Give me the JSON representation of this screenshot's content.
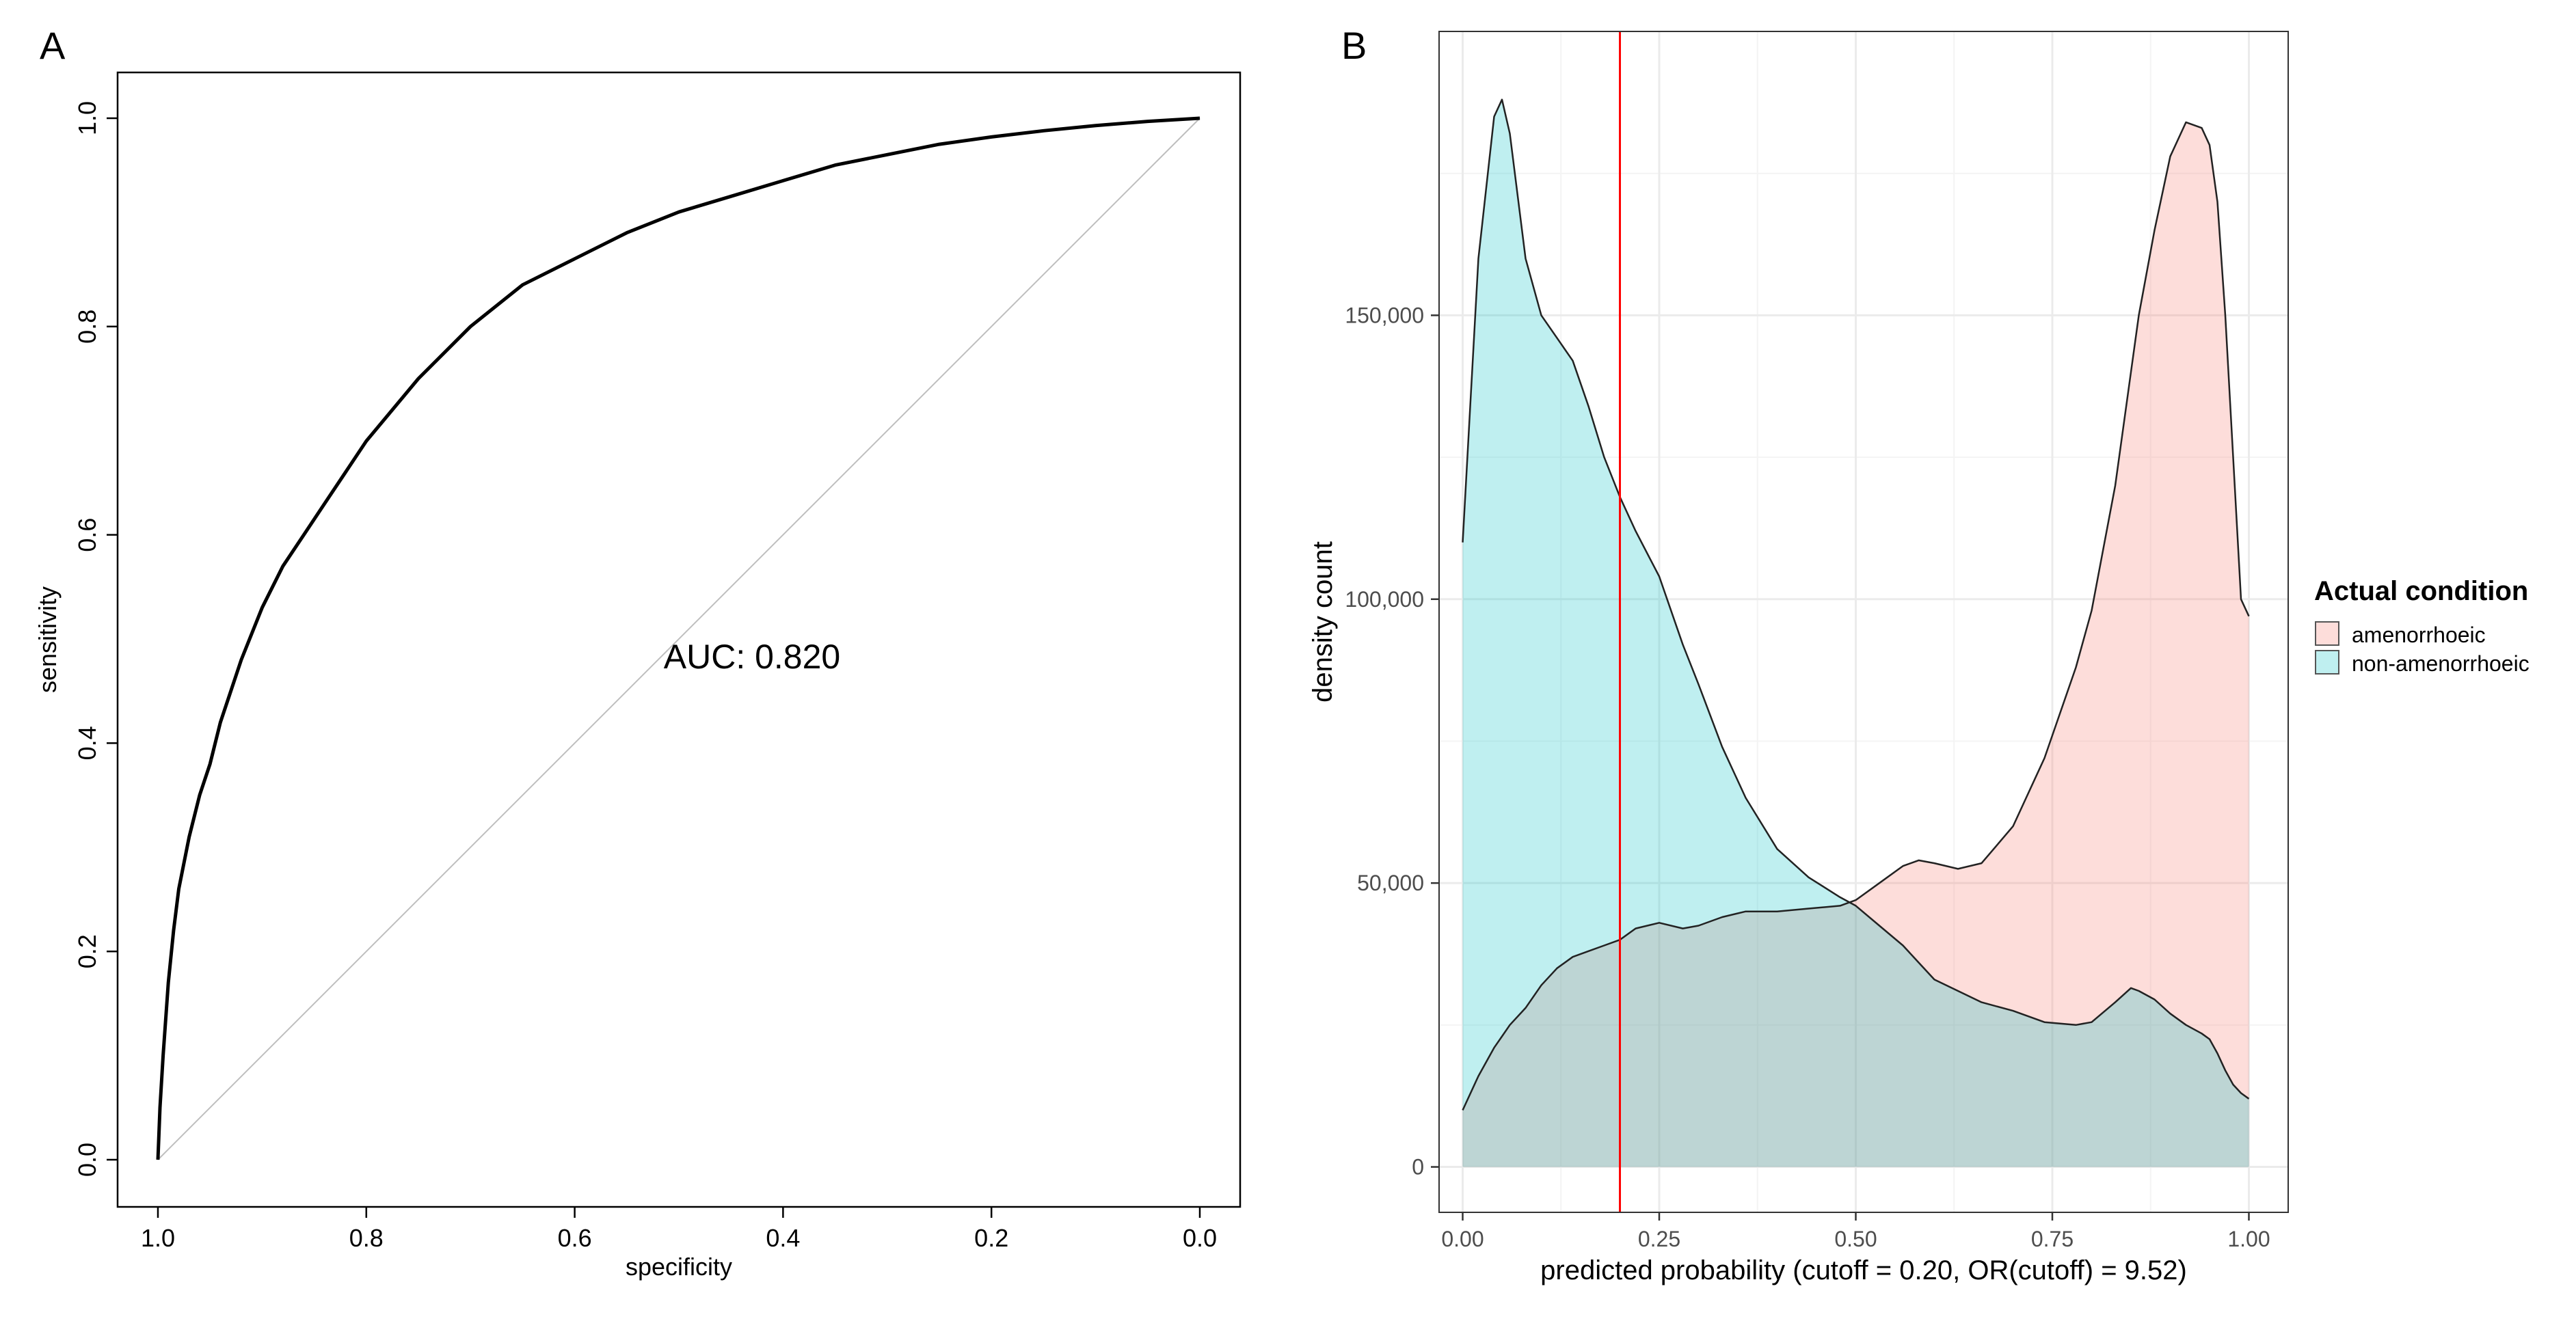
{
  "panel_labels": [
    "A",
    "B"
  ],
  "colors": {
    "roc_curve": "#000000",
    "diagonal": "#bebebe",
    "amenorrhoeic_fill": "#F8766D",
    "non_amenorrhoeic_fill": "#00BFC4",
    "cutoff_line": "#ff0000",
    "grid_major": "#ebebeb",
    "grid_minor": "#f4f4f4"
  },
  "chart_data": [
    {
      "type": "line",
      "panel": "A",
      "xlabel": "specificity",
      "ylabel": "sensitivity",
      "x_reversed": true,
      "xlim": [
        1.0,
        0.0
      ],
      "ylim": [
        0.0,
        1.0
      ],
      "x_ticks": [
        "1.0",
        "0.8",
        "0.6",
        "0.4",
        "0.2",
        "0.0"
      ],
      "y_ticks": [
        "0.0",
        "0.2",
        "0.4",
        "0.6",
        "0.8",
        "1.0"
      ],
      "annotation": "AUC: 0.820",
      "grid": false,
      "reference_line": {
        "x": [
          1.0,
          0.0
        ],
        "y": [
          0.0,
          1.0
        ]
      },
      "series": [
        {
          "x": [
            1.0,
            0.998,
            0.995,
            0.99,
            0.985,
            0.98,
            0.97,
            0.96,
            0.95,
            0.94,
            0.92,
            0.9,
            0.88,
            0.86,
            0.84,
            0.82,
            0.8,
            0.75,
            0.7,
            0.65,
            0.6,
            0.55,
            0.5,
            0.45,
            0.4,
            0.35,
            0.3,
            0.25,
            0.2,
            0.15,
            0.1,
            0.05,
            0.0
          ],
          "y": [
            0.0,
            0.05,
            0.1,
            0.17,
            0.22,
            0.26,
            0.31,
            0.35,
            0.38,
            0.42,
            0.48,
            0.53,
            0.57,
            0.6,
            0.63,
            0.66,
            0.69,
            0.75,
            0.8,
            0.84,
            0.865,
            0.89,
            0.91,
            0.925,
            0.94,
            0.955,
            0.965,
            0.975,
            0.982,
            0.988,
            0.993,
            0.997,
            1.0
          ]
        }
      ]
    },
    {
      "type": "area",
      "panel": "B",
      "xlabel": "predicted probability (cutoff = 0.20, OR(cutoff) = 9.52)",
      "ylabel": "density count",
      "xlim": [
        -0.03,
        1.05
      ],
      "ylim": [
        -8000,
        200000
      ],
      "x_ticks": [
        "0.00",
        "0.25",
        "0.50",
        "0.75",
        "1.00"
      ],
      "x_tick_values": [
        0,
        0.25,
        0.5,
        0.75,
        1.0
      ],
      "y_ticks": [
        "0",
        "50,000",
        "100,000",
        "150,000"
      ],
      "y_tick_values": [
        0,
        50000,
        100000,
        150000
      ],
      "grid": true,
      "cutoff": 0.2,
      "legend": {
        "title": "Actual condition",
        "position": "right",
        "entries": [
          "amenorrhoeic",
          "non-amenorrhoeic"
        ]
      },
      "x": [
        0.0,
        0.02,
        0.04,
        0.05,
        0.06,
        0.08,
        0.1,
        0.12,
        0.14,
        0.16,
        0.18,
        0.2,
        0.22,
        0.25,
        0.28,
        0.3,
        0.33,
        0.36,
        0.4,
        0.44,
        0.48,
        0.5,
        0.53,
        0.56,
        0.58,
        0.6,
        0.63,
        0.66,
        0.7,
        0.74,
        0.78,
        0.8,
        0.83,
        0.85,
        0.86,
        0.88,
        0.9,
        0.92,
        0.94,
        0.95,
        0.96,
        0.97,
        0.98,
        0.99,
        1.0
      ],
      "series": [
        {
          "name": "amenorrhoeic",
          "values": [
            10000,
            16000,
            21000,
            23000,
            25000,
            28000,
            32000,
            35000,
            37000,
            38000,
            39000,
            40000,
            42000,
            43000,
            42000,
            42500,
            44000,
            45000,
            45000,
            45500,
            46000,
            47000,
            50000,
            53000,
            54000,
            53500,
            52500,
            53500,
            60000,
            72000,
            88000,
            98000,
            120000,
            140000,
            150000,
            165000,
            178000,
            184000,
            183000,
            180000,
            170000,
            150000,
            125000,
            100000,
            97000
          ]
        },
        {
          "name": "non-amenorrhoeic",
          "values": [
            110000,
            160000,
            185000,
            188000,
            182000,
            160000,
            150000,
            146000,
            142000,
            134000,
            125000,
            118000,
            112000,
            104000,
            92000,
            85000,
            74000,
            65000,
            56000,
            51000,
            47500,
            46000,
            42500,
            39000,
            36000,
            33000,
            31000,
            29000,
            27500,
            25500,
            25000,
            25500,
            29000,
            31500,
            31000,
            29500,
            27000,
            25000,
            23500,
            22500,
            20000,
            17000,
            14500,
            13000,
            12000
          ]
        }
      ]
    }
  ]
}
